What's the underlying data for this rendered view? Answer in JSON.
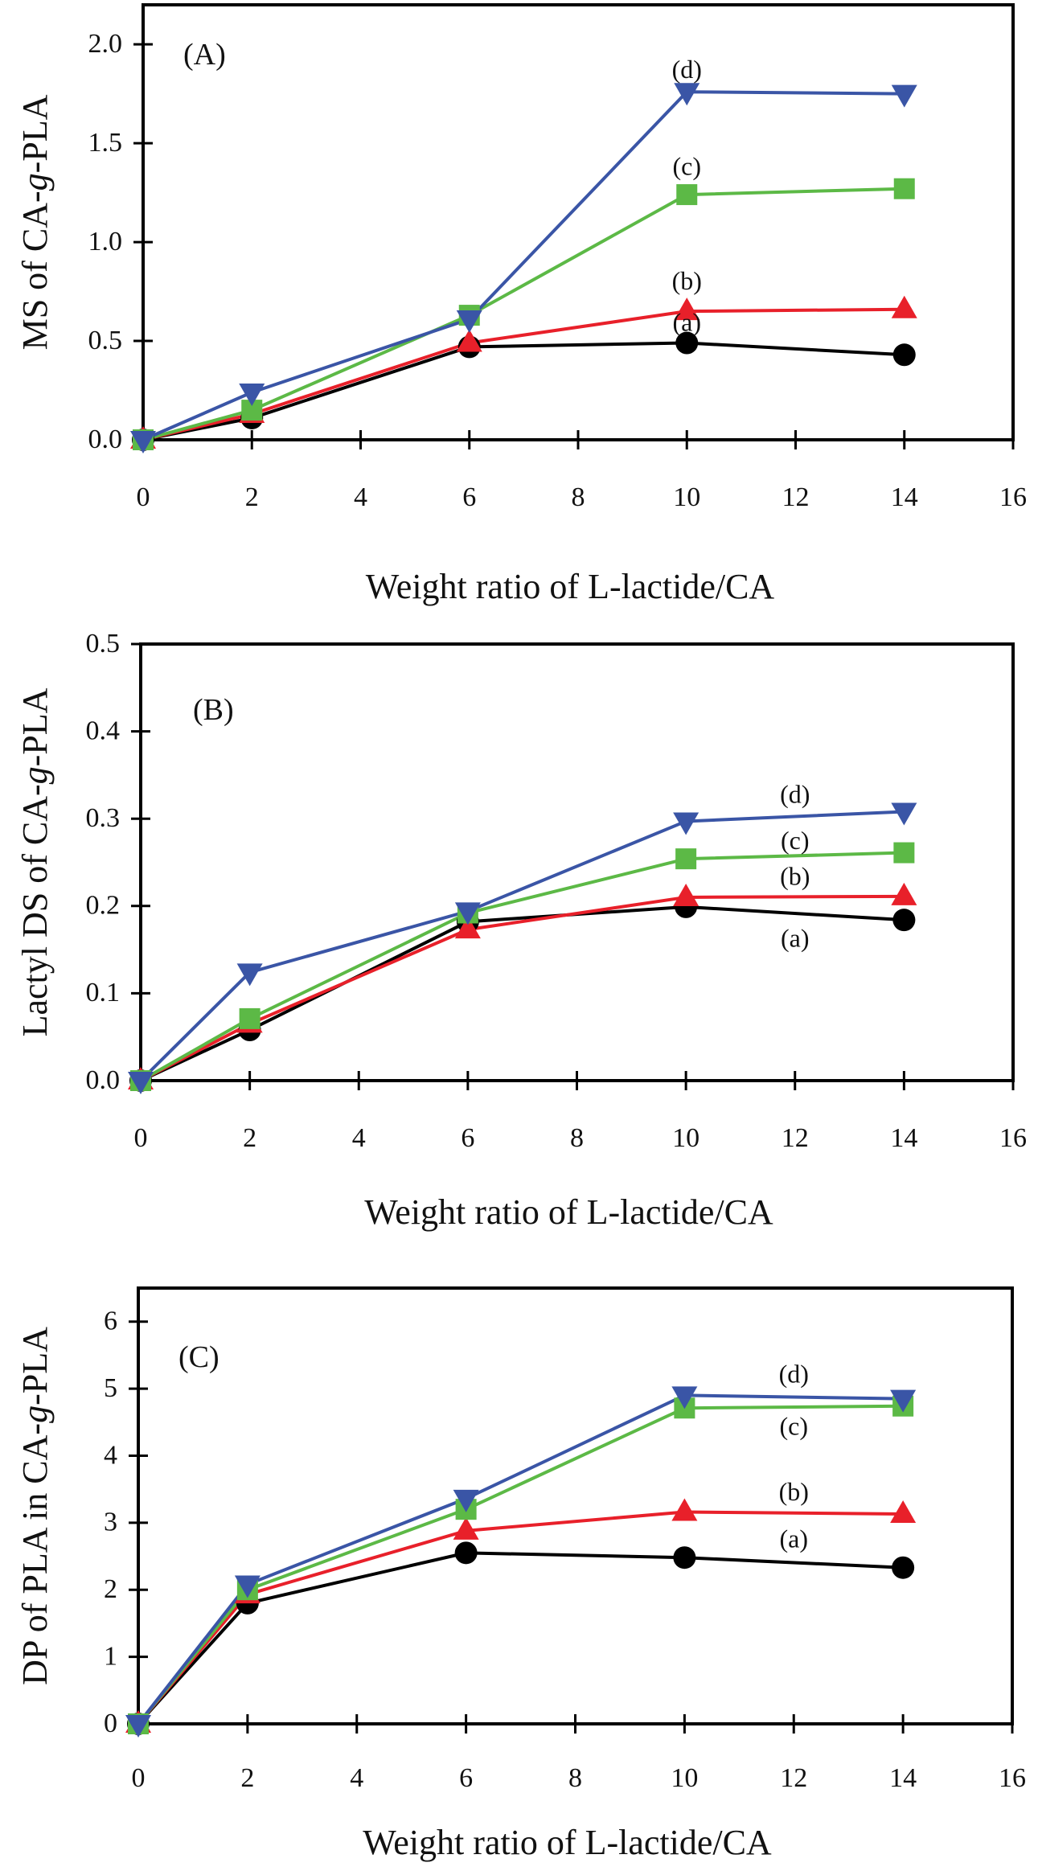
{
  "colors": {
    "a": "#000000",
    "b": "#e8202a",
    "c": "#5cb946",
    "d": "#3a55a6",
    "axis": "#000000",
    "background": "#ffffff"
  },
  "chart_data": [
    {
      "type": "line",
      "panel_label": "(A)",
      "title": "",
      "xlabel": "Weight ratio of L-lactide/CA",
      "ylabel_parts": [
        "MS of CA-",
        "g",
        "-PLA"
      ],
      "ylabel": "MS of CA-g-PLA",
      "xlim": [
        0,
        16
      ],
      "ylim": [
        0,
        2.2
      ],
      "xticks": [
        0,
        2,
        4,
        6,
        8,
        10,
        12,
        14,
        16
      ],
      "xtick_labels": [
        "0",
        "2",
        "4",
        "6",
        "8",
        "10",
        "12",
        "14",
        "16"
      ],
      "yticks": [
        0,
        0.5,
        1.0,
        1.5,
        2.0
      ],
      "ytick_labels": [
        "0.0",
        "0.5",
        "1.0",
        "1.5",
        "2.0"
      ],
      "grid": false,
      "legend": "inline labels near right end of each series",
      "x": [
        0,
        2,
        6,
        10,
        14
      ],
      "series": [
        {
          "name": "(a)",
          "key": "a",
          "marker": "circle",
          "values": [
            0,
            0.11,
            0.47,
            0.49,
            0.43
          ],
          "label_pos": [
            10.0,
            0.58
          ]
        },
        {
          "name": "(b)",
          "key": "b",
          "marker": "triangle-up",
          "values": [
            0,
            0.13,
            0.49,
            0.65,
            0.66
          ],
          "label_pos": [
            10.0,
            0.79
          ]
        },
        {
          "name": "(c)",
          "key": "c",
          "marker": "square",
          "values": [
            0,
            0.15,
            0.63,
            1.24,
            1.27
          ],
          "label_pos": [
            10.0,
            1.37
          ]
        },
        {
          "name": "(d)",
          "key": "d",
          "marker": "triangle-down",
          "values": [
            0,
            0.24,
            0.61,
            1.76,
            1.75
          ],
          "label_pos": [
            10.0,
            1.86
          ]
        }
      ]
    },
    {
      "type": "line",
      "panel_label": "(B)",
      "title": "",
      "xlabel": "Weight ratio of L-lactide/CA",
      "ylabel_parts": [
        "Lactyl DS of CA-",
        "g",
        "-PLA"
      ],
      "ylabel": "Lactyl DS of CA-g-PLA",
      "xlim": [
        0,
        16
      ],
      "ylim": [
        0,
        0.5
      ],
      "xticks": [
        0,
        2,
        4,
        6,
        8,
        10,
        12,
        14,
        16
      ],
      "xtick_labels": [
        "0",
        "2",
        "4",
        "6",
        "8",
        "10",
        "12",
        "14",
        "16"
      ],
      "yticks": [
        0,
        0.1,
        0.2,
        0.3,
        0.4,
        0.5
      ],
      "ytick_labels": [
        "0.0",
        "0.1",
        "0.2",
        "0.3",
        "0.4",
        "0.5"
      ],
      "grid": false,
      "legend": "inline labels near right end of each series",
      "x": [
        0,
        2,
        6,
        10,
        14
      ],
      "series": [
        {
          "name": "(a)",
          "key": "a",
          "marker": "circle",
          "values": [
            0,
            0.058,
            0.182,
            0.199,
            0.184
          ],
          "label_pos": [
            12.0,
            0.16
          ]
        },
        {
          "name": "(b)",
          "key": "b",
          "marker": "triangle-up",
          "values": [
            0,
            0.065,
            0.173,
            0.21,
            0.211
          ],
          "label_pos": [
            12.0,
            0.231
          ]
        },
        {
          "name": "(c)",
          "key": "c",
          "marker": "square",
          "values": [
            0,
            0.071,
            0.192,
            0.254,
            0.261
          ],
          "label_pos": [
            12.0,
            0.272
          ]
        },
        {
          "name": "(d)",
          "key": "d",
          "marker": "triangle-down",
          "values": [
            0,
            0.124,
            0.194,
            0.297,
            0.308
          ],
          "label_pos": [
            12.0,
            0.325
          ]
        }
      ]
    },
    {
      "type": "line",
      "panel_label": "(C)",
      "title": "",
      "xlabel": "Weight ratio of L-lactide/CA",
      "ylabel_parts": [
        "DP of PLA in CA-",
        "g",
        "-PLA"
      ],
      "ylabel": "DP of PLA in CA-g-PLA",
      "xlim": [
        0,
        16
      ],
      "ylim": [
        0,
        6.5
      ],
      "xticks": [
        0,
        2,
        4,
        6,
        8,
        10,
        12,
        14,
        16
      ],
      "xtick_labels": [
        "0",
        "2",
        "4",
        "6",
        "8",
        "10",
        "12",
        "14",
        "16"
      ],
      "yticks": [
        0,
        1,
        2,
        3,
        4,
        5,
        6
      ],
      "ytick_labels": [
        "0",
        "1",
        "2",
        "3",
        "4",
        "5",
        "6"
      ],
      "grid": false,
      "legend": "inline labels near right end of each series",
      "x": [
        0,
        2,
        6,
        10,
        14
      ],
      "series": [
        {
          "name": "(a)",
          "key": "a",
          "marker": "circle",
          "values": [
            0,
            1.8,
            2.55,
            2.48,
            2.33
          ],
          "label_pos": [
            12.0,
            2.72
          ]
        },
        {
          "name": "(b)",
          "key": "b",
          "marker": "triangle-up",
          "values": [
            0,
            1.93,
            2.88,
            3.16,
            3.13
          ],
          "label_pos": [
            12.0,
            3.42
          ]
        },
        {
          "name": "(c)",
          "key": "c",
          "marker": "square",
          "values": [
            0,
            2.0,
            3.2,
            4.71,
            4.74
          ],
          "label_pos": [
            12.0,
            4.4
          ]
        },
        {
          "name": "(d)",
          "key": "d",
          "marker": "triangle-down",
          "values": [
            0,
            2.08,
            3.36,
            4.9,
            4.85
          ],
          "label_pos": [
            12.0,
            5.18
          ]
        }
      ]
    }
  ]
}
